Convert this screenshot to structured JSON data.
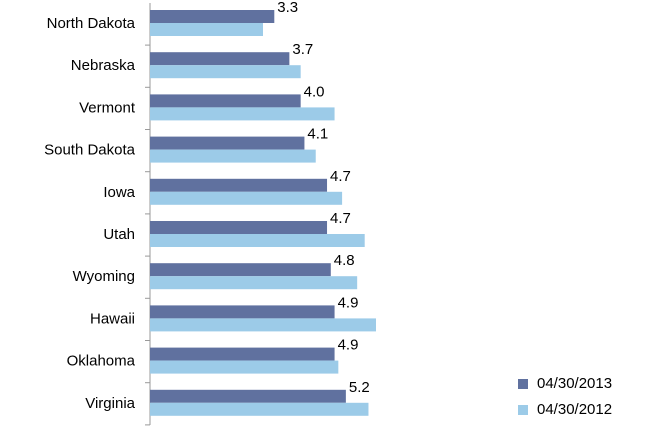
{
  "chart_data": {
    "type": "bar",
    "orientation": "horizontal",
    "categories": [
      "North Dakota",
      "Nebraska",
      "Vermont",
      "South Dakota",
      "Iowa",
      "Utah",
      "Wyoming",
      "Hawaii",
      "Oklahoma",
      "Virginia"
    ],
    "series": [
      {
        "name": "04/30/2013",
        "color": "#60719f",
        "values": [
          3.3,
          3.7,
          4.0,
          4.1,
          4.7,
          4.7,
          4.8,
          4.9,
          4.9,
          5.2
        ],
        "value_labels": [
          "3.3",
          "3.7",
          "4.0",
          "4.1",
          "4.7",
          "4.7",
          "4.8",
          "4.9",
          "4.9",
          "5.2"
        ]
      },
      {
        "name": "04/30/2012",
        "color": "#9ccbe8",
        "values": [
          3.0,
          4.0,
          4.9,
          4.4,
          5.1,
          5.7,
          5.5,
          6.0,
          5.0,
          5.8
        ]
      }
    ],
    "legend": "bottom-right"
  }
}
